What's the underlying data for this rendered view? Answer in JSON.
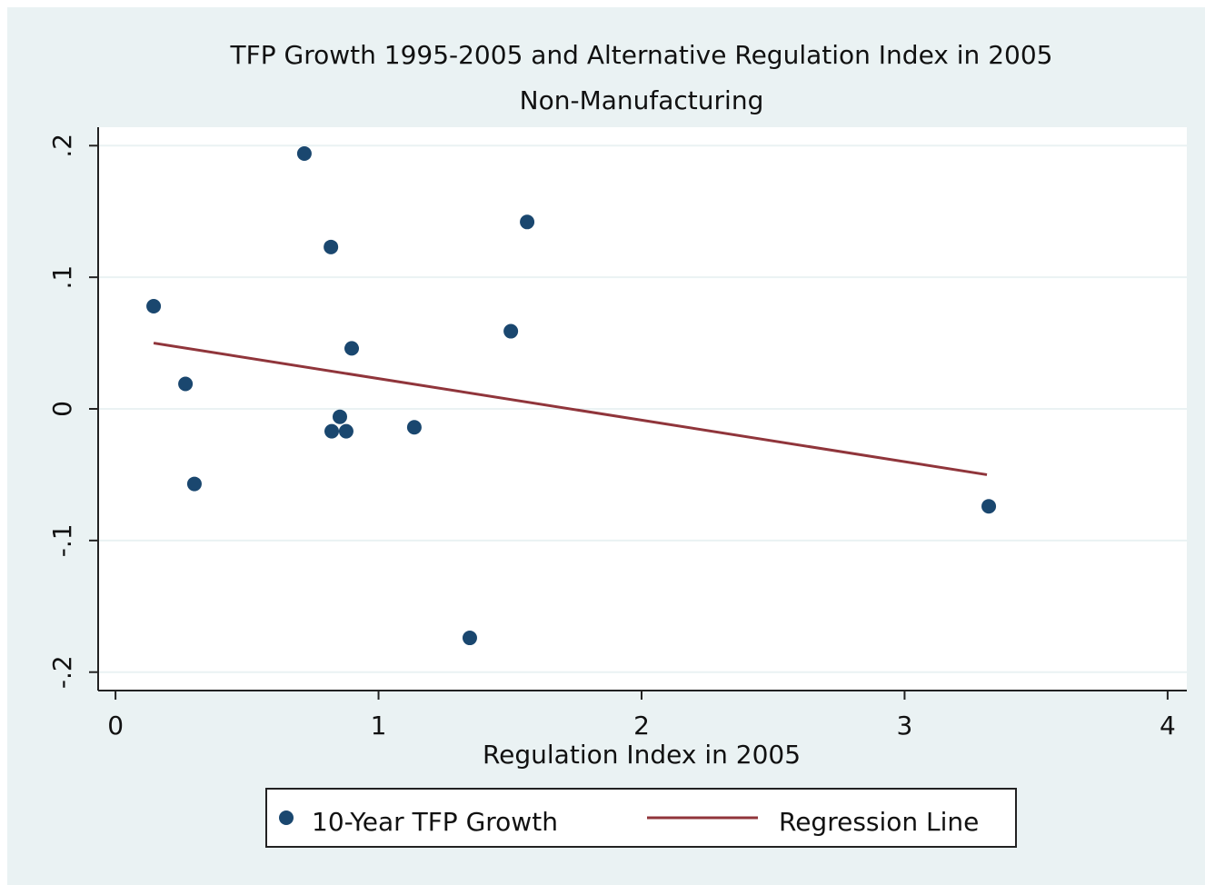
{
  "chart_data": {
    "type": "scatter",
    "title": "TFP Growth 1995-2005 and Alternative Regulation Index in 2005",
    "subtitle": "Non-Manufacturing",
    "x_label": "Regulation Index in 2005",
    "xlim": [
      -0.066,
      4.073
    ],
    "ylim": [
      -0.214,
      0.214
    ],
    "xticks": [
      0,
      1,
      2,
      3,
      4
    ],
    "yticks": [
      {
        "value": -0.2,
        "label": "-.2"
      },
      {
        "value": -0.1,
        "label": "-.1"
      },
      0,
      {
        "value": 0.1,
        "label": ".1"
      },
      {
        "value": 0.2,
        "label": ".2"
      }
    ],
    "grid": true,
    "series": [
      {
        "name": "10-Year TFP Growth",
        "type": "scatter",
        "color": "#1a476f",
        "x": [
          0.145,
          0.266,
          0.3,
          0.718,
          0.819,
          0.822,
          0.853,
          0.877,
          0.898,
          1.136,
          1.347,
          1.503,
          1.565,
          3.32
        ],
        "values": [
          0.078,
          0.019,
          -0.057,
          0.194,
          0.123,
          -0.017,
          -0.006,
          -0.017,
          0.046,
          -0.014,
          -0.174,
          0.059,
          0.142,
          -0.074
        ]
      },
      {
        "name": "Regression Line",
        "type": "line",
        "color": "#90353b",
        "x": [
          0.145,
          3.313
        ],
        "values": [
          0.05,
          -0.05
        ]
      }
    ]
  }
}
